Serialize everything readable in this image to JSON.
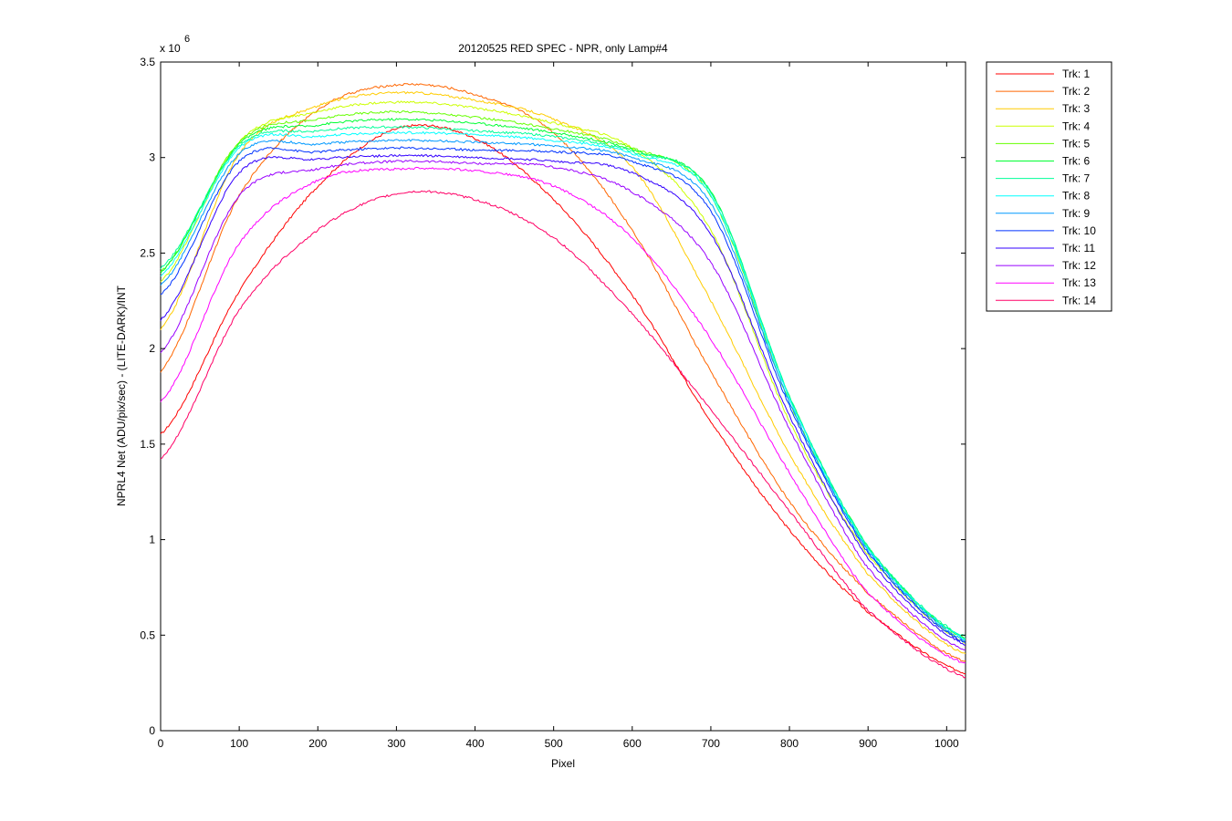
{
  "chart_data": {
    "type": "line",
    "title": "20120525 RED SPEC - NPR, only Lamp#4",
    "xlabel": "Pixel",
    "ylabel": "NPRL4 Net (ADU/pix/sec) - (LITE-DARK)/INT",
    "y_exponent_label": "x 10",
    "y_exponent_power": "6",
    "xlim": [
      0,
      1024
    ],
    "ylim": [
      0,
      3.5
    ],
    "x_ticks": [
      0,
      100,
      200,
      300,
      400,
      500,
      600,
      700,
      800,
      900,
      1000
    ],
    "x_tick_labels": [
      "0",
      "100",
      "200",
      "300",
      "400",
      "500",
      "600",
      "700",
      "800",
      "900",
      "1000"
    ],
    "y_ticks": [
      0,
      0.5,
      1,
      1.5,
      2,
      2.5,
      3,
      3.5
    ],
    "y_tick_labels": [
      "0",
      "0.5",
      "1",
      "1.5",
      "2",
      "2.5",
      "3",
      "3.5"
    ],
    "grid": false,
    "legend_position": "outside-top-right",
    "series": [
      {
        "name": "Trk: 1",
        "color": "#ff0000",
        "x": [
          0,
          100,
          200,
          300,
          400,
          500,
          600,
          700,
          800,
          900,
          1024
        ],
        "y": [
          1.55,
          2.3,
          2.85,
          3.15,
          3.1,
          2.78,
          2.28,
          1.62,
          1.05,
          0.62,
          0.3
        ]
      },
      {
        "name": "Trk: 2",
        "color": "#ff6600",
        "x": [
          0,
          100,
          200,
          300,
          400,
          500,
          600,
          700,
          800,
          900,
          1024
        ],
        "y": [
          1.88,
          2.8,
          3.25,
          3.38,
          3.33,
          3.13,
          2.62,
          1.88,
          1.2,
          0.72,
          0.36
        ]
      },
      {
        "name": "Trk: 3",
        "color": "#ffcc00",
        "x": [
          0,
          100,
          200,
          300,
          400,
          500,
          600,
          700,
          800,
          900,
          1024
        ],
        "y": [
          2.1,
          3.02,
          3.27,
          3.34,
          3.3,
          3.2,
          2.95,
          2.25,
          1.45,
          0.82,
          0.4
        ]
      },
      {
        "name": "Trk: 4",
        "color": "#ccff00",
        "x": [
          0,
          100,
          200,
          300,
          400,
          500,
          600,
          700,
          800,
          900,
          1024
        ],
        "y": [
          2.35,
          3.08,
          3.24,
          3.29,
          3.26,
          3.18,
          3.05,
          2.62,
          1.62,
          0.92,
          0.46
        ]
      },
      {
        "name": "Trk: 5",
        "color": "#66ff00",
        "x": [
          0,
          100,
          200,
          300,
          400,
          500,
          600,
          700,
          800,
          900,
          1024
        ],
        "y": [
          2.4,
          3.08,
          3.2,
          3.24,
          3.21,
          3.15,
          3.05,
          2.8,
          1.72,
          0.95,
          0.48
        ]
      },
      {
        "name": "Trk: 6",
        "color": "#00ff33",
        "x": [
          0,
          100,
          200,
          300,
          400,
          500,
          600,
          700,
          800,
          900,
          1024
        ],
        "y": [
          2.4,
          3.07,
          3.17,
          3.2,
          3.18,
          3.13,
          3.04,
          2.82,
          1.75,
          0.96,
          0.48
        ]
      },
      {
        "name": "Trk: 7",
        "color": "#00ff99",
        "x": [
          0,
          100,
          200,
          300,
          400,
          500,
          600,
          700,
          800,
          900,
          1024
        ],
        "y": [
          2.42,
          3.06,
          3.14,
          3.16,
          3.14,
          3.11,
          3.03,
          2.82,
          1.75,
          0.96,
          0.49
        ]
      },
      {
        "name": "Trk: 8",
        "color": "#00ffff",
        "x": [
          0,
          100,
          200,
          300,
          400,
          500,
          600,
          700,
          800,
          900,
          1024
        ],
        "y": [
          2.38,
          3.05,
          3.11,
          3.13,
          3.12,
          3.09,
          3.02,
          2.8,
          1.74,
          0.95,
          0.48
        ]
      },
      {
        "name": "Trk: 9",
        "color": "#0099ff",
        "x": [
          0,
          100,
          200,
          300,
          400,
          500,
          600,
          700,
          800,
          900,
          1024
        ],
        "y": [
          2.33,
          3.02,
          3.07,
          3.09,
          3.08,
          3.06,
          3.0,
          2.76,
          1.72,
          0.94,
          0.47
        ]
      },
      {
        "name": "Trk: 10",
        "color": "#0033ff",
        "x": [
          0,
          100,
          200,
          300,
          400,
          500,
          600,
          700,
          800,
          900,
          1024
        ],
        "y": [
          2.28,
          2.98,
          3.03,
          3.05,
          3.04,
          3.03,
          2.98,
          2.72,
          1.7,
          0.93,
          0.46
        ]
      },
      {
        "name": "Trk: 11",
        "color": "#3300ff",
        "x": [
          0,
          100,
          200,
          300,
          400,
          500,
          600,
          700,
          800,
          900,
          1024
        ],
        "y": [
          2.15,
          2.92,
          2.99,
          3.01,
          3.0,
          2.98,
          2.92,
          2.6,
          1.65,
          0.9,
          0.45
        ]
      },
      {
        "name": "Trk: 12",
        "color": "#9900ff",
        "x": [
          0,
          100,
          200,
          300,
          400,
          500,
          600,
          700,
          800,
          900,
          1024
        ],
        "y": [
          1.98,
          2.8,
          2.94,
          2.98,
          2.97,
          2.95,
          2.82,
          2.45,
          1.58,
          0.85,
          0.42
        ]
      },
      {
        "name": "Trk: 13",
        "color": "#ff00ff",
        "x": [
          0,
          100,
          200,
          300,
          400,
          500,
          600,
          700,
          800,
          900,
          1024
        ],
        "y": [
          1.72,
          2.55,
          2.88,
          2.94,
          2.93,
          2.85,
          2.58,
          2.05,
          1.35,
          0.72,
          0.35
        ]
      },
      {
        "name": "Trk: 14",
        "color": "#ff0066",
        "x": [
          0,
          100,
          200,
          300,
          400,
          500,
          600,
          700,
          800,
          900,
          1024
        ],
        "y": [
          1.42,
          2.2,
          2.62,
          2.81,
          2.78,
          2.58,
          2.18,
          1.68,
          1.15,
          0.63,
          0.28
        ]
      }
    ]
  }
}
